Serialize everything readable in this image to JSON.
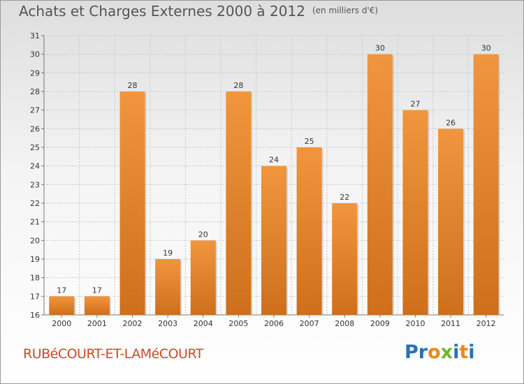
{
  "header": {
    "title": "Achats et Charges Externes 2000 à 2012",
    "unit": "(en milliers d'€)"
  },
  "footer": {
    "commune": "RUBéCOURT-ET-LAMéCOURT"
  },
  "logo": {
    "letters": [
      "P",
      "r",
      "o",
      "x",
      "i",
      "t",
      "i"
    ],
    "colors": [
      "#2b6fb8",
      "#2b6fb8",
      "#e88a1a",
      "#6fb52c",
      "#2b6fb8",
      "#e88a1a",
      "#2b6fb8"
    ]
  },
  "chart_data": {
    "type": "bar",
    "title": "Achats et Charges Externes 2000 à 2012",
    "subtitle": "(en milliers d'€)",
    "categories": [
      "2000",
      "2001",
      "2002",
      "2003",
      "2004",
      "2005",
      "2006",
      "2007",
      "2008",
      "2009",
      "2010",
      "2011",
      "2012"
    ],
    "values": [
      17,
      17,
      28,
      19,
      20,
      28,
      24,
      25,
      22,
      30,
      27,
      26,
      30
    ],
    "ylim": [
      16,
      31
    ],
    "yticks": [
      16,
      17,
      18,
      19,
      20,
      21,
      22,
      23,
      24,
      25,
      26,
      27,
      28,
      29,
      30,
      31
    ],
    "grid": true,
    "bar_color": "#f0963e",
    "bar_color_dark": "#cf6f1c"
  }
}
